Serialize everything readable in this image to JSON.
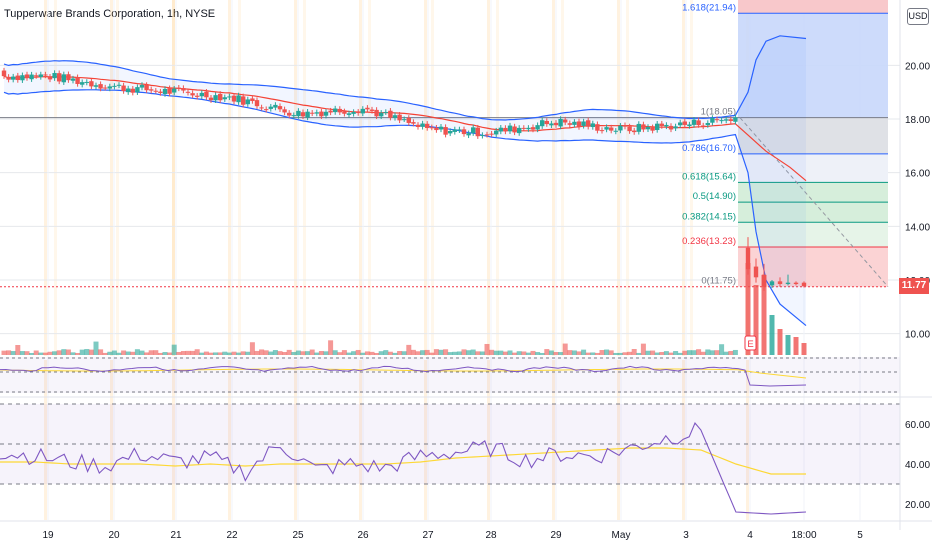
{
  "title": "Tupperware Brands Corporation, 1h, NYSE",
  "currency_button": "USD",
  "last_price": "11.77",
  "colors": {
    "up": "#26a69a",
    "down": "#ef5350",
    "bollinger": "#2962ff",
    "ma": "#f44336",
    "rsi": "#7e57c2",
    "rsi_ma": "#fdd835",
    "session": "#ff9800"
  },
  "chart_data": [
    {
      "type": "candlestick",
      "title": "Tupperware Brands Corporation, 1h, NYSE",
      "y_ticks": [
        "20.00",
        "18.00",
        "16.00",
        "14.00",
        "12.00",
        "10.00"
      ],
      "ylim": [
        9.3,
        22.3
      ],
      "x_ticks": [
        "19",
        "20",
        "21",
        "22",
        "25",
        "26",
        "27",
        "28",
        "29",
        "May",
        "3",
        "4",
        "18:00",
        "5"
      ],
      "approx_close_path": [
        {
          "x": "19",
          "close": 19.6
        },
        {
          "x": "20",
          "close": 19.2
        },
        {
          "x": "21",
          "close": 19.0
        },
        {
          "x": "22",
          "close": 18.8
        },
        {
          "x": "25",
          "close": 18.2
        },
        {
          "x": "26",
          "close": 18.4
        },
        {
          "x": "27",
          "close": 17.6
        },
        {
          "x": "28",
          "close": 17.5
        },
        {
          "x": "29",
          "close": 17.9
        },
        {
          "x": "May",
          "close": 17.6
        },
        {
          "x": "3",
          "close": 17.8
        },
        {
          "x": "4 pre",
          "close": 18.05
        },
        {
          "x": "4",
          "close": 12.0
        },
        {
          "x": "18:00",
          "close": 11.77
        }
      ],
      "fibonacci": [
        {
          "label": "1.618(21.94)",
          "value": 21.94
        },
        {
          "label": "1(18.05)",
          "value": 18.05
        },
        {
          "label": "0.786(16.70)",
          "value": 16.7
        },
        {
          "label": "0.618(15.64)",
          "value": 15.64
        },
        {
          "label": "0.5(14.90)",
          "value": 14.9
        },
        {
          "label": "0.382(14.15)",
          "value": 14.15
        },
        {
          "label": "0.236(13.23)",
          "value": 13.23
        },
        {
          "label": "0(11.75)",
          "value": 11.75
        }
      ],
      "earnings_marker": "E"
    },
    {
      "type": "line",
      "series": [
        {
          "values": [
            46,
            44,
            41,
            39,
            45,
            41,
            43,
            36,
            50,
            37,
            40,
            38,
            44,
            46,
            48,
            42,
            45,
            44,
            48,
            53,
            57,
            16,
            15,
            16
          ]
        },
        {
          "values": [
            41,
            41,
            40,
            40,
            40,
            39,
            40,
            39,
            40,
            40,
            40,
            40,
            41,
            43,
            44,
            45,
            46,
            47,
            48,
            48,
            47,
            40,
            35,
            35
          ]
        }
      ],
      "y_ticks": [
        "60.00",
        "40.00",
        "20.00"
      ],
      "ylim": [
        10,
        75
      ],
      "bands": [
        30,
        50,
        70
      ]
    }
  ]
}
